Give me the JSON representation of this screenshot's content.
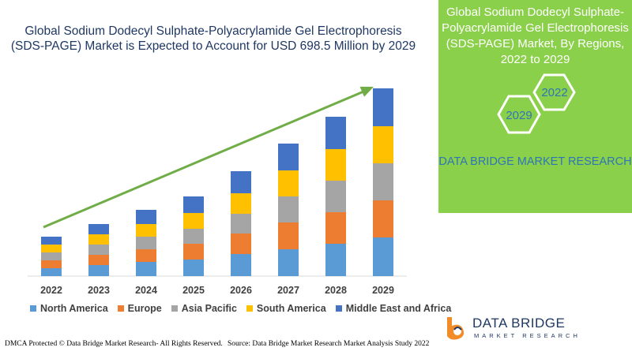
{
  "chart_data": {
    "type": "bar",
    "stacked": true,
    "title": "Global Sodium Dodecyl Sulphate-Polyacrylamide Gel Electrophoresis (SDS-PAGE) Market is Expected to Account for USD 698.5 Million by 2029",
    "categories": [
      "2022",
      "2023",
      "2024",
      "2025",
      "2026",
      "2027",
      "2028",
      "2029"
    ],
    "series": [
      {
        "name": "North America",
        "values": [
          10,
          14,
          18,
          21,
          28,
          34,
          41,
          49
        ]
      },
      {
        "name": "Europe",
        "values": [
          10,
          13,
          16,
          20,
          26,
          34,
          40,
          47
        ]
      },
      {
        "name": "Asia Pacific",
        "values": [
          10,
          13,
          16,
          19,
          25,
          33,
          40,
          47
        ]
      },
      {
        "name": "South America",
        "values": [
          10,
          13,
          16,
          20,
          26,
          33,
          40,
          47
        ]
      },
      {
        "name": "Middle East and Africa",
        "values": [
          10,
          13,
          18,
          21,
          28,
          34,
          41,
          48
        ]
      }
    ],
    "legend_position": "bottom",
    "grid": false,
    "ylim": [
      0,
      250
    ],
    "colors": [
      "#5b9bd5",
      "#ed7d31",
      "#a5a5a5",
      "#ffc000",
      "#4472c4"
    ],
    "trend_arrow_color": "#70ad47"
  },
  "panel": {
    "title": "Global Sodium Dodecyl Sulphate-Polyacrylamide Gel Electrophoresis (SDS-PAGE) Market, By Regions, 2022 to 2029",
    "hex_2022": "2022",
    "hex_2029": "2029",
    "brand": "DATA BRIDGE MARKET RESEARCH",
    "background": "#8bd04a"
  },
  "logo": {
    "name": "DATA BRIDGE",
    "tagline": "MARKET RESEARCH"
  },
  "footer": {
    "left": "DMCA Protected © Data Bridge Market Research- All Rights Reserved.",
    "right": "Source: Data Bridge Market Research Market Analysis Study 2022"
  }
}
